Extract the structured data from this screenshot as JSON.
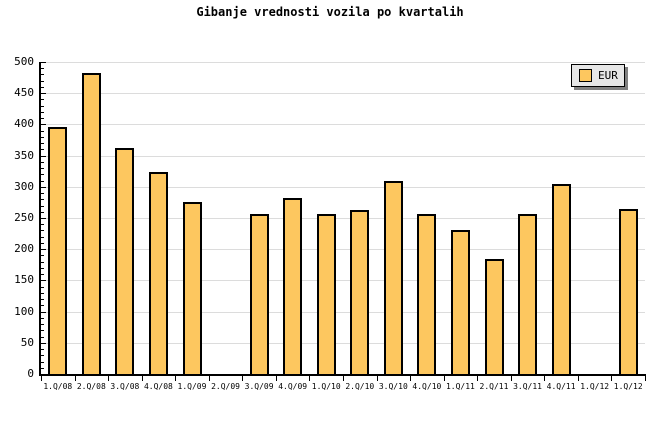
{
  "colors": {
    "background": "#ffffff",
    "bar_fill": "#fdc75f",
    "bar_border": "#000000",
    "grid": "#dcdcdc",
    "axis": "#000000",
    "legend_bg": "#e6e6e6",
    "legend_shadow": "#808080"
  },
  "chart_data": {
    "type": "bar",
    "title": "Gibanje vrednosti vozila po kvartalih",
    "categories": [
      "1.Q/08",
      "2.Q/08",
      "3.Q/08",
      "4.Q/08",
      "1.Q/09",
      "2.Q/09",
      "3.Q/09",
      "4.Q/09",
      "1.Q/10",
      "2.Q/10",
      "3.Q/10",
      "4.Q/10",
      "1.Q/11",
      "2.Q/11",
      "3.Q/11",
      "4.Q/11",
      "1.Q/12",
      "1.Q/12"
    ],
    "series": [
      {
        "name": "EUR",
        "values": [
          396,
          482,
          362,
          323,
          275,
          0,
          256,
          282,
          256,
          263,
          309,
          256,
          230,
          184,
          256,
          304,
          0,
          264
        ]
      }
    ],
    "xlabel": "",
    "ylabel": "",
    "ylim": [
      0,
      500
    ],
    "ytick_major": 50,
    "ytick_minor": 10,
    "ytick_labels": [
      "0",
      "50",
      "100",
      "150",
      "200",
      "250",
      "300",
      "350",
      "400",
      "450",
      "500"
    ],
    "grid": "horizontal",
    "legend_position": "top-right",
    "bars_drawn_for_zero_values": false
  }
}
